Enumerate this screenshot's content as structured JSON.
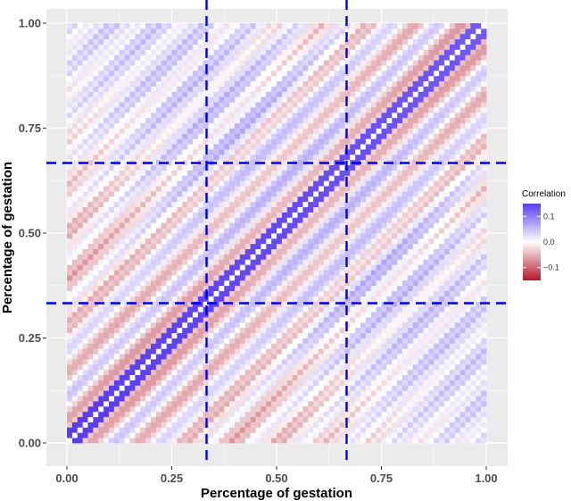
{
  "chart_data": {
    "type": "heatmap",
    "title": "",
    "xlabel": "Percentage of gestation",
    "ylabel": "Percentage of gestation",
    "xlim": [
      0,
      1
    ],
    "ylim": [
      0,
      1
    ],
    "x_ticks": [
      0.0,
      0.25,
      0.5,
      0.75,
      1.0
    ],
    "x_tick_labels": [
      "0.00",
      "0.25",
      "0.50",
      "0.75",
      "1.00"
    ],
    "y_ticks": [
      0.0,
      0.25,
      0.5,
      0.75,
      1.0
    ],
    "y_tick_labels": [
      "0.00",
      "0.25",
      "0.50",
      "0.75",
      "1.00"
    ],
    "grid": true,
    "legend": {
      "title": "Correlation",
      "placement": "right",
      "ticks": [
        0.1,
        0.0,
        -0.1
      ],
      "tick_labels": [
        "0.1",
        "0.0",
        "−0.1"
      ],
      "range": [
        -0.15,
        0.15
      ]
    },
    "reference_lines": {
      "vertical": [
        0.333,
        0.667
      ],
      "horizontal": [
        0.333,
        0.667
      ],
      "color": "#0000e6",
      "style": "dashed"
    },
    "colors": {
      "positive": "#5a3cf0",
      "neutral": "#ffffff",
      "negative": "#b2182b",
      "panel_background": "#ebebeb",
      "gridline": "#ffffff"
    }
  }
}
